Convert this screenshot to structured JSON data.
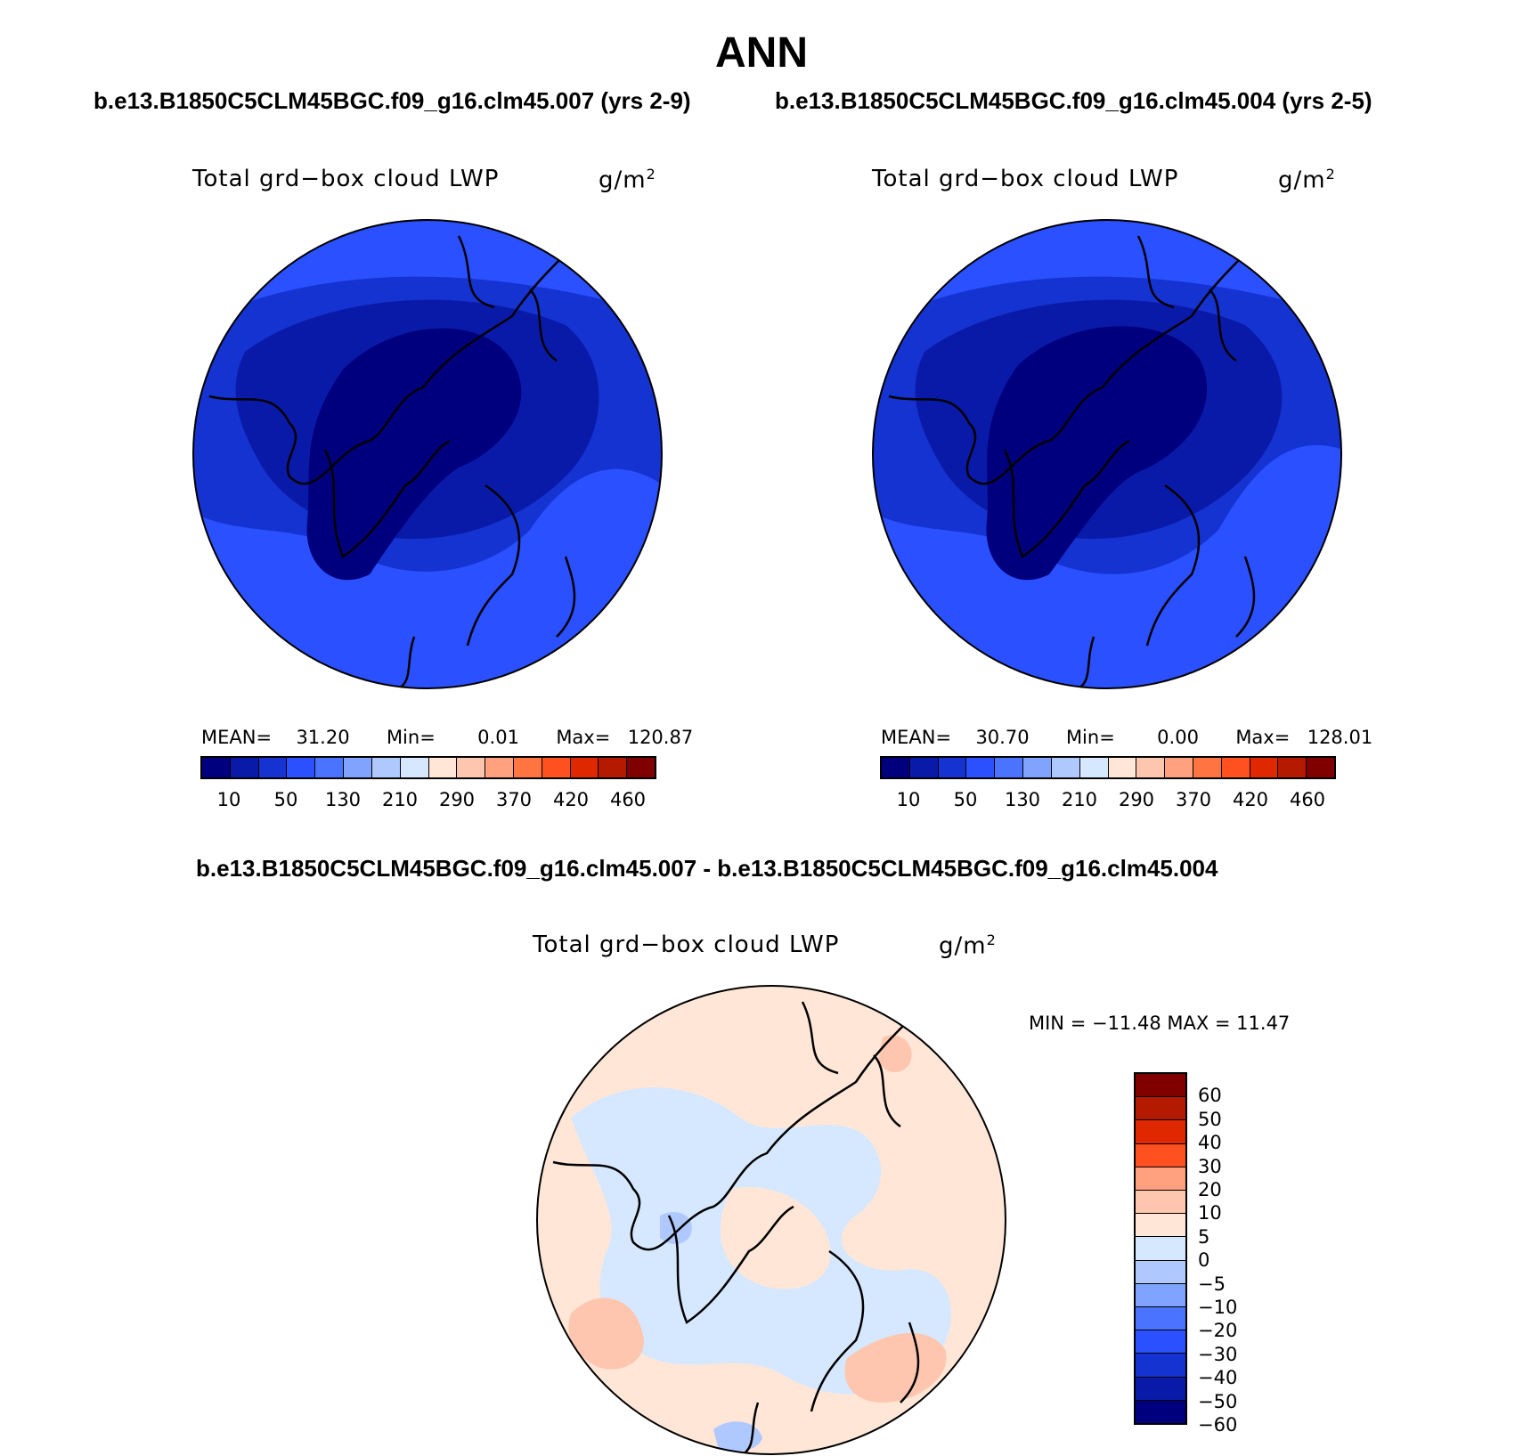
{
  "page_title": "ANN",
  "subtitles": {
    "left": "b.e13.B1850C5CLM45BGC.f09_g16.clm45.007 (yrs 2-9)",
    "right": "b.e13.B1850C5CLM45BGC.f09_g16.clm45.004 (yrs 2-5)",
    "diff": "b.e13.B1850C5CLM45BGC.f09_g16.clm45.007 - b.e13.B1850C5CLM45BGC.f09_g16.clm45.004"
  },
  "panels": [
    {
      "variable": "Total grd−box cloud LWP",
      "units_base": "g/m",
      "units_exp": "2",
      "mean_label": "MEAN=",
      "mean": "31.20",
      "min_label": "Min=",
      "min": "0.01",
      "max_label": "Max=",
      "max": "120.87"
    },
    {
      "variable": "Total grd−box cloud LWP",
      "units_base": "g/m",
      "units_exp": "2",
      "mean_label": "MEAN=",
      "mean": "30.70",
      "min_label": "Min=",
      "min": "0.00",
      "max_label": "Max=",
      "max": "128.01"
    }
  ],
  "diff_panel": {
    "variable": "Total grd−box cloud LWP",
    "units_base": "g/m",
    "units_exp": "2",
    "minmax": "MIN = −11.48 MAX =  11.47"
  },
  "colorbar_abs": {
    "colors": [
      "#00007f",
      "#0a1aa8",
      "#1533d1",
      "#2a50ff",
      "#4a74ff",
      "#7fa3ff",
      "#afc9ff",
      "#d6e8ff",
      "#ffe6d6",
      "#ffc6af",
      "#ffa07f",
      "#ff7440",
      "#ff5020",
      "#e02800",
      "#b31a00",
      "#800000"
    ],
    "labels": [
      "10",
      "50",
      "130",
      "210",
      "290",
      "370",
      "420",
      "460"
    ]
  },
  "colorbar_diff": {
    "colors": [
      "#800000",
      "#b31a00",
      "#e02800",
      "#ff5020",
      "#ffa07f",
      "#ffc6af",
      "#ffe6d6",
      "#d6e8ff",
      "#afc9ff",
      "#7fa3ff",
      "#4a74ff",
      "#2a50ff",
      "#1533d1",
      "#0a1aa8",
      "#00007f"
    ],
    "labels": [
      "60",
      "50",
      "40",
      "30",
      "20",
      "10",
      "5",
      "0",
      "−5",
      "−10",
      "−20",
      "−30",
      "−40",
      "−50",
      "−60"
    ]
  },
  "map_colors": {
    "deep": "#00007f",
    "mid": "#0a1aa8",
    "outer": "#1533d1",
    "edge": "#2a50ff",
    "diff_pos": "#ffe6d6",
    "diff_neg": "#d6e8ff",
    "diff_pos2": "#ffc6af",
    "diff_neg2": "#afc9ff"
  }
}
